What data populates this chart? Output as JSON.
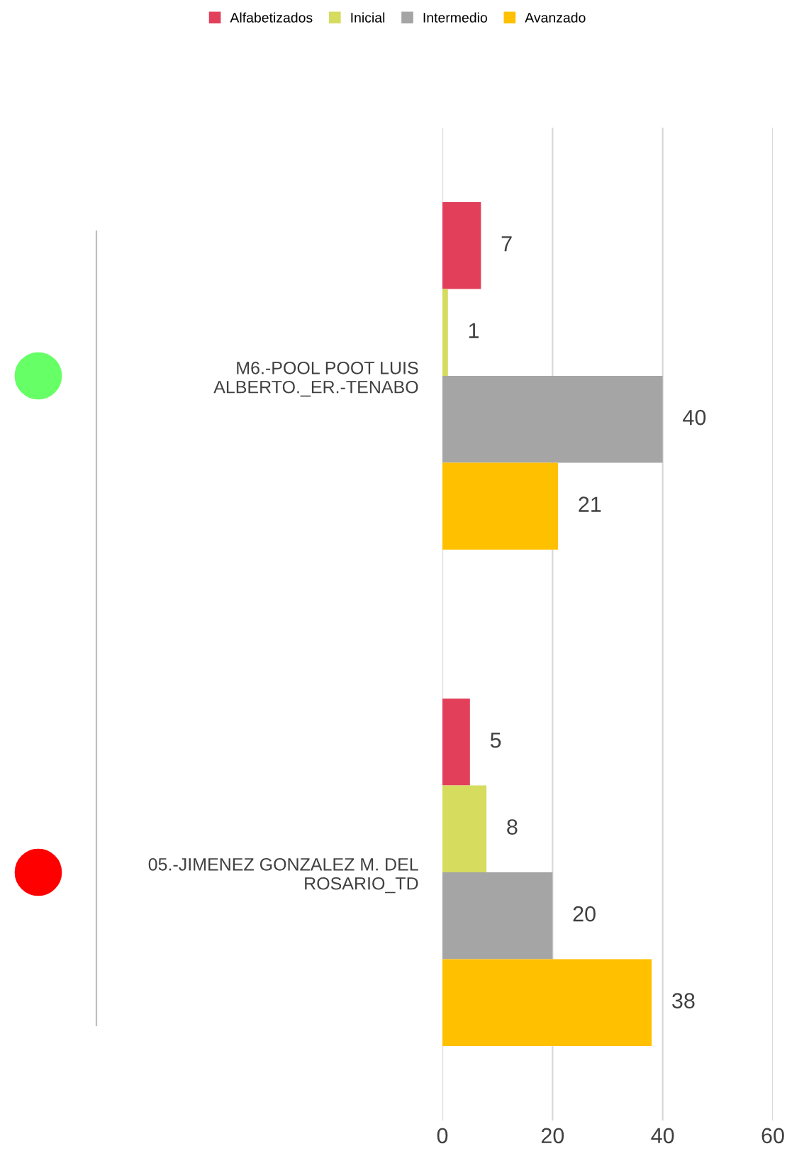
{
  "chart_data": {
    "type": "bar",
    "orientation": "horizontal",
    "categories": [
      "M6.-POOL POOT LUIS\nALBERTO._ER.-TENABO",
      "05.-JIMENEZ GONZALEZ M. DEL\nROSARIO_TD"
    ],
    "series": [
      {
        "name": "Alfabetizados",
        "color": "#e2405a",
        "values": [
          7,
          5
        ]
      },
      {
        "name": "Inicial",
        "color": "#d5dc5e",
        "values": [
          1,
          8
        ]
      },
      {
        "name": "Intermedio",
        "color": "#a5a5a5",
        "values": [
          40,
          20
        ]
      },
      {
        "name": "Avanzado",
        "color": "#ffc000",
        "values": [
          21,
          38
        ]
      }
    ],
    "xlim": [
      0,
      60
    ],
    "xticks": [
      0,
      20,
      40,
      60
    ],
    "grid": "x",
    "legend": "top",
    "data_labels": true
  }
}
